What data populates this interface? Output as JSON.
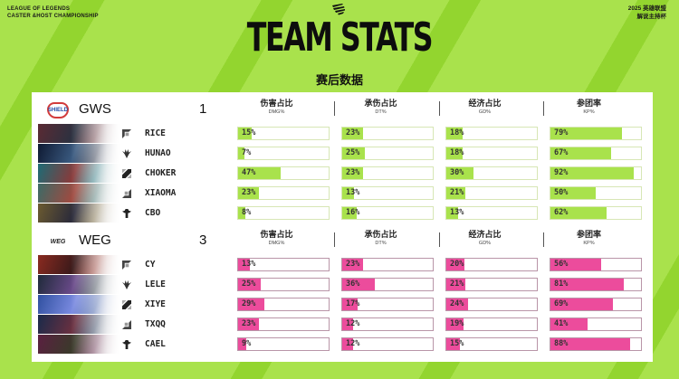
{
  "header": {
    "top_left_line1": "LEAGUE OF LEGENDS",
    "top_left_line2": "CASTER &HOST CHAMPIONSHIP",
    "top_right_line1": "2025 英雄联盟",
    "top_right_line2": "解说主持杯",
    "title": "TEAM STATS",
    "subtitle": "赛后数据",
    "logo_icon": "claw-marks-icon"
  },
  "columns": [
    {
      "cn": "伤害占比",
      "en": "DMG%"
    },
    {
      "cn": "承伤占比",
      "en": "DT%"
    },
    {
      "cn": "经济占比",
      "en": "GD%"
    },
    {
      "cn": "参团率",
      "en": "KP%"
    }
  ],
  "colors": {
    "background": "#a9e24c",
    "stripe": "#93d52f",
    "team1_bar": "#a9e24c",
    "team2_bar": "#ec4c9c"
  },
  "teams": [
    {
      "name": "GWS",
      "logo_text": "SHIELD",
      "score": "1",
      "players": [
        {
          "role": "top",
          "role_icon": "top-lane-icon",
          "name": "RICE",
          "stats": [
            "15%",
            "23%",
            "18%",
            "79%"
          ],
          "values": [
            15,
            23,
            18,
            79
          ]
        },
        {
          "role": "jungle",
          "role_icon": "jungle-icon",
          "name": "HUNAO",
          "stats": [
            "7%",
            "25%",
            "18%",
            "67%"
          ],
          "values": [
            7,
            25,
            18,
            67
          ]
        },
        {
          "role": "mid",
          "role_icon": "mid-lane-icon",
          "name": "CHOKER",
          "stats": [
            "47%",
            "23%",
            "30%",
            "92%"
          ],
          "values": [
            47,
            23,
            30,
            92
          ]
        },
        {
          "role": "bot",
          "role_icon": "bot-lane-icon",
          "name": "XIAOMA",
          "stats": [
            "23%",
            "13%",
            "21%",
            "50%"
          ],
          "values": [
            23,
            13,
            21,
            50
          ]
        },
        {
          "role": "support",
          "role_icon": "support-icon",
          "name": "CBO",
          "stats": [
            "8%",
            "16%",
            "13%",
            "62%"
          ],
          "values": [
            8,
            16,
            13,
            62
          ]
        }
      ]
    },
    {
      "name": "WEG",
      "logo_text": "WEG",
      "score": "3",
      "players": [
        {
          "role": "top",
          "role_icon": "top-lane-icon",
          "name": "CY",
          "stats": [
            "13%",
            "23%",
            "20%",
            "56%"
          ],
          "values": [
            13,
            23,
            20,
            56
          ]
        },
        {
          "role": "jungle",
          "role_icon": "jungle-icon",
          "name": "LELE",
          "stats": [
            "25%",
            "36%",
            "21%",
            "81%"
          ],
          "values": [
            25,
            36,
            21,
            81
          ]
        },
        {
          "role": "mid",
          "role_icon": "mid-lane-icon",
          "name": "XIYE",
          "stats": [
            "29%",
            "17%",
            "24%",
            "69%"
          ],
          "values": [
            29,
            17,
            24,
            69
          ]
        },
        {
          "role": "bot",
          "role_icon": "bot-lane-icon",
          "name": "TXQQ",
          "stats": [
            "23%",
            "12%",
            "19%",
            "41%"
          ],
          "values": [
            23,
            12,
            19,
            41
          ]
        },
        {
          "role": "support",
          "role_icon": "support-icon",
          "name": "CAEL",
          "stats": [
            "9%",
            "12%",
            "15%",
            "88%"
          ],
          "values": [
            9,
            12,
            15,
            88
          ]
        }
      ]
    }
  ]
}
